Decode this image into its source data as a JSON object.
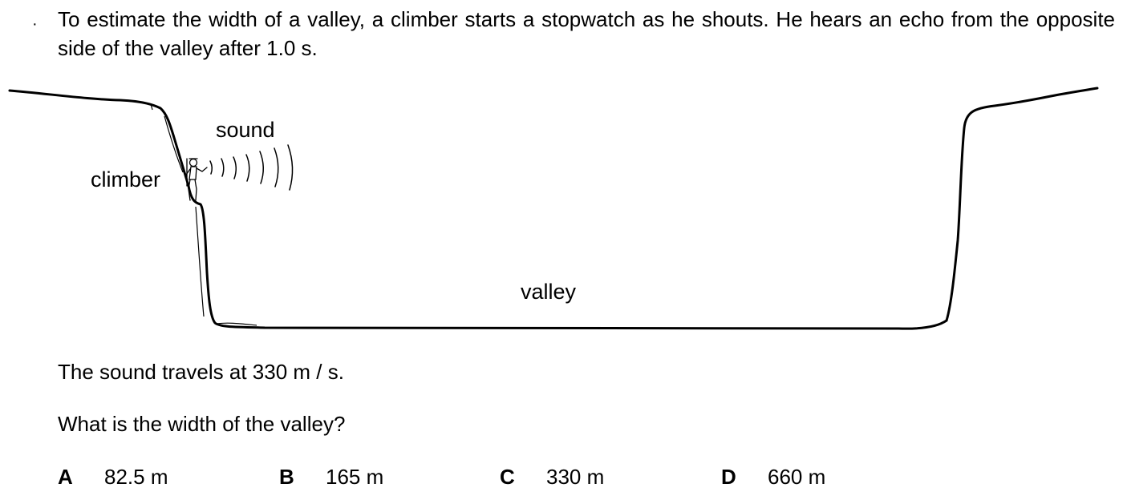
{
  "question": {
    "bullet": "·",
    "text": "To estimate the width of a valley, a climber starts a stopwatch as he shouts. He hears an echo from the opposite side of the valley after 1.0 s."
  },
  "diagram": {
    "label_sound": "sound",
    "label_climber": "climber",
    "label_valley": "valley"
  },
  "fact": "The sound travels at 330 m / s.",
  "prompt": "What is the width of the valley?",
  "options": [
    {
      "letter": "A",
      "text": "82.5 m"
    },
    {
      "letter": "B",
      "text": "165 m"
    },
    {
      "letter": "C",
      "text": "330 m"
    },
    {
      "letter": "D",
      "text": "660 m"
    }
  ]
}
